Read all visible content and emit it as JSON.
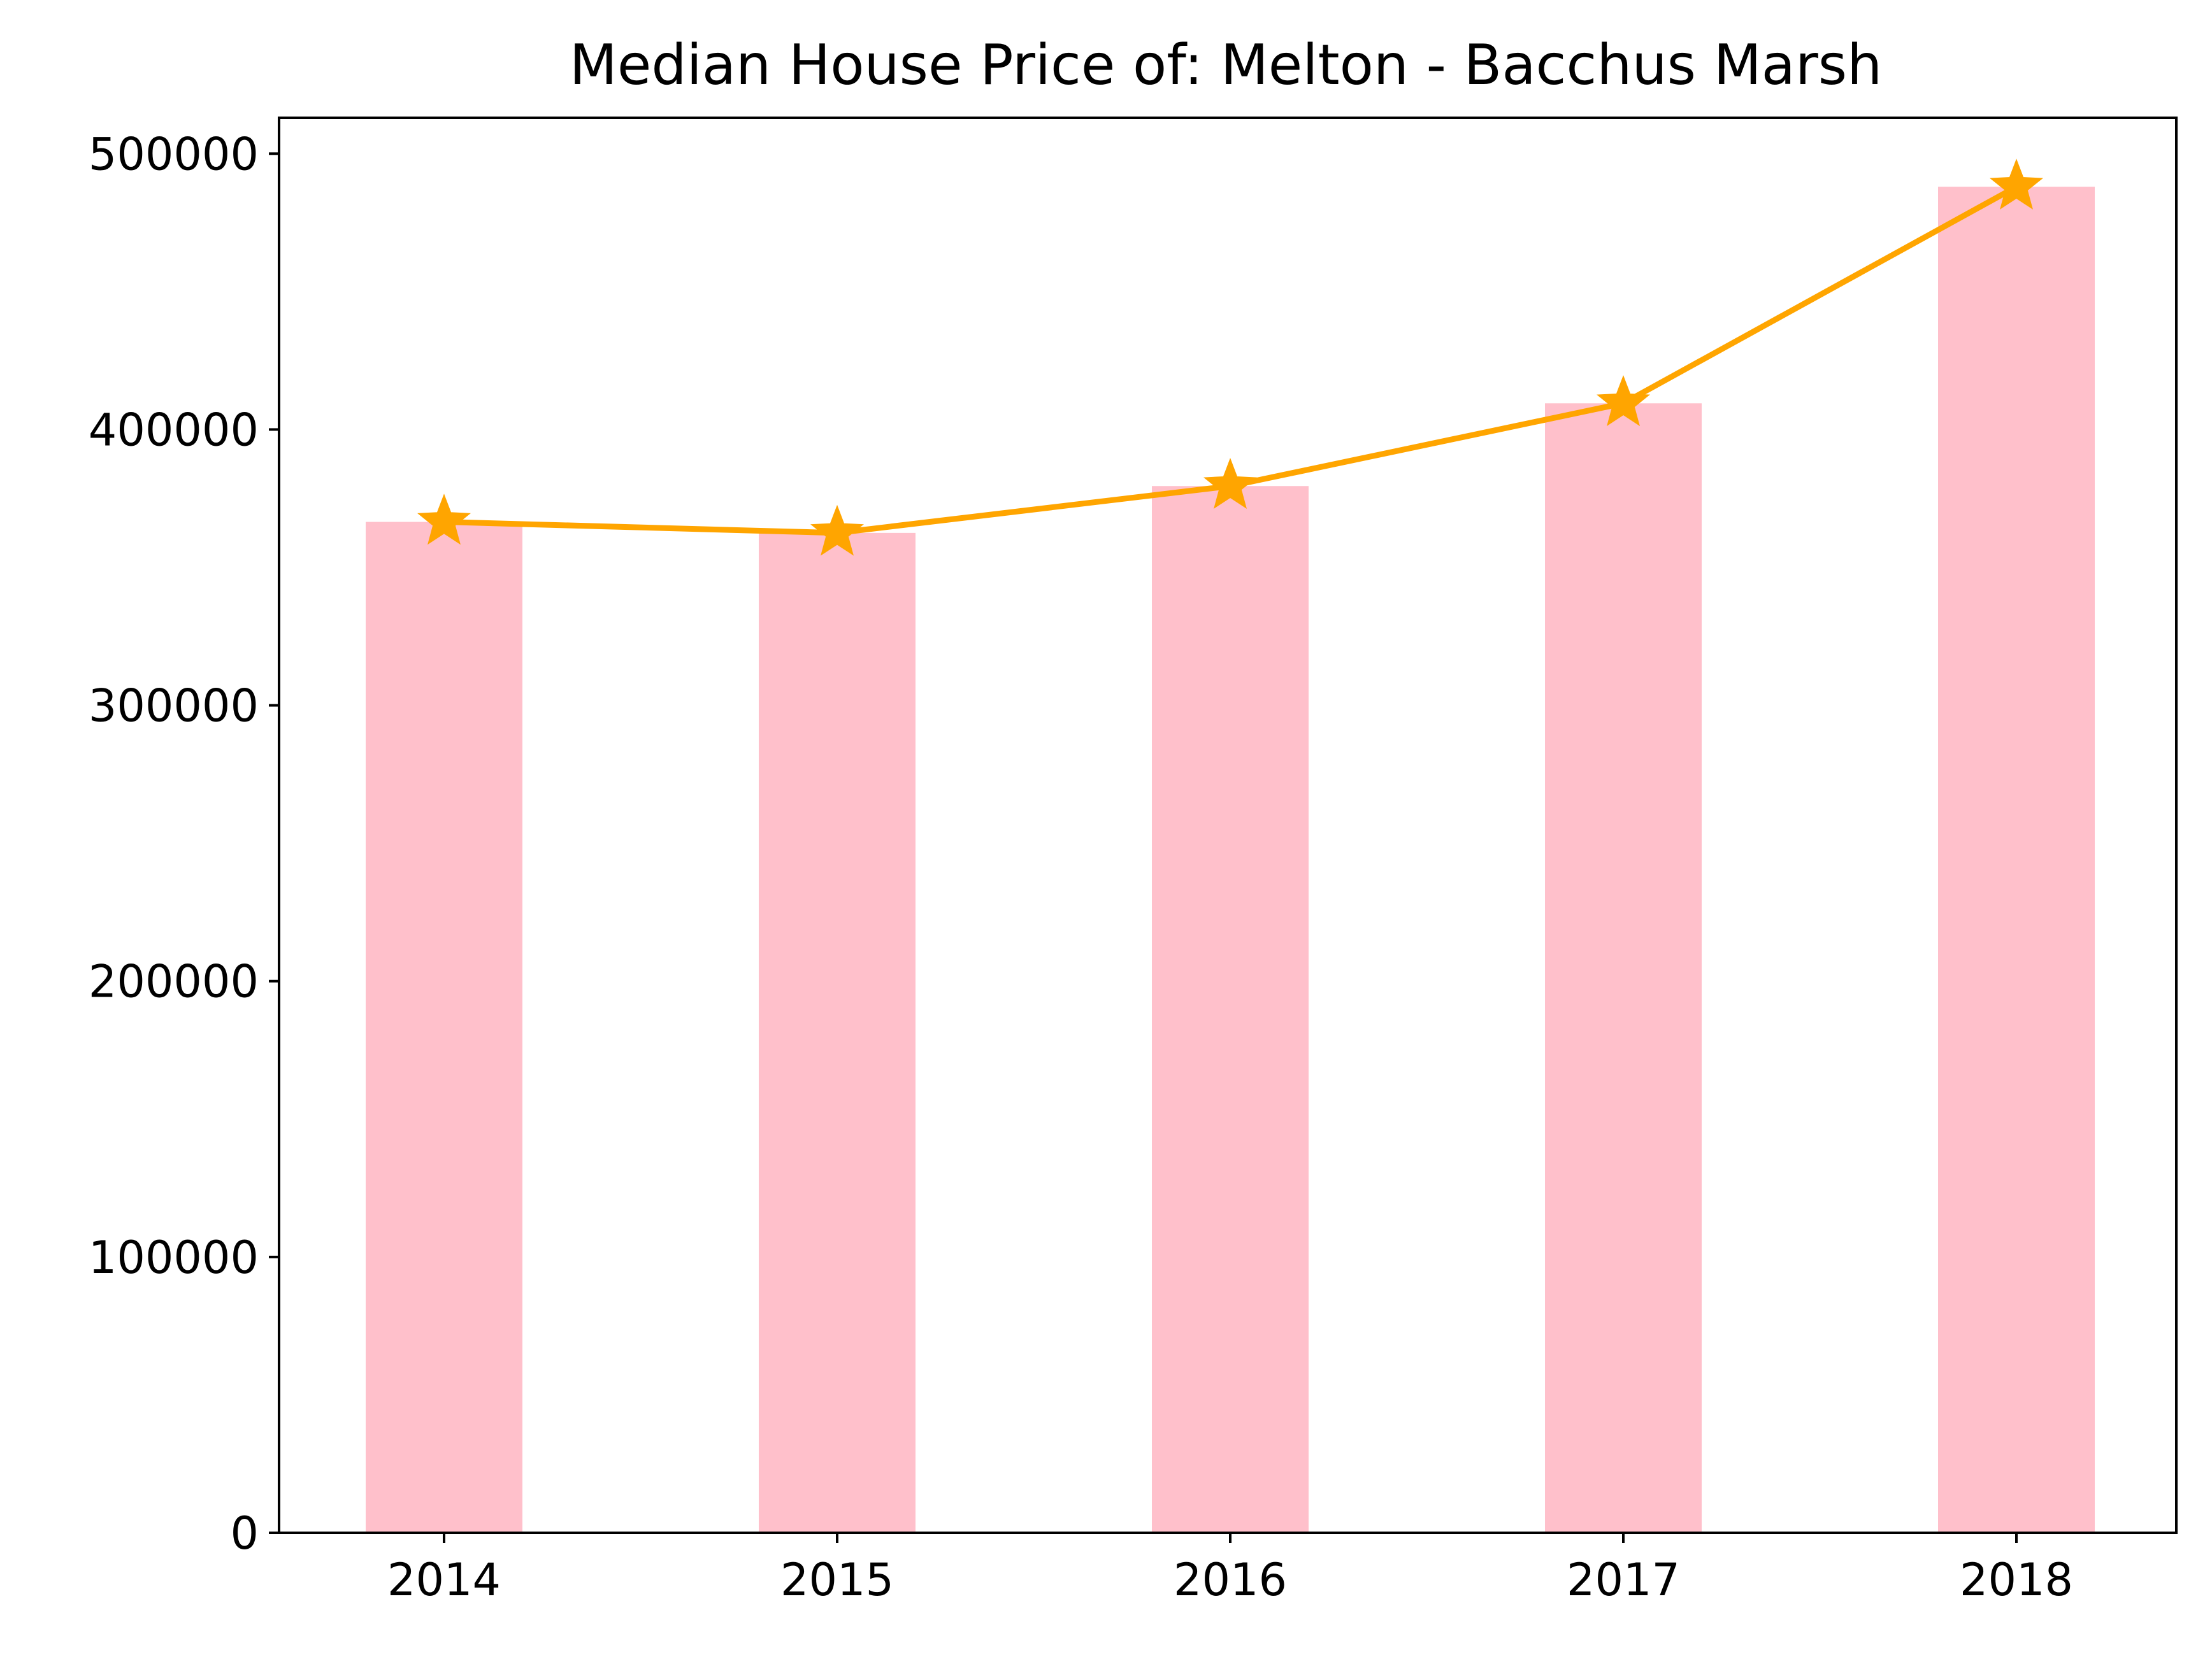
{
  "chart_data": {
    "type": "bar",
    "title": "Median House Price of: Melton - Bacchus Marsh",
    "xlabel": "",
    "ylabel": "",
    "categories": [
      "2014",
      "2015",
      "2016",
      "2017",
      "2018"
    ],
    "values": [
      366500,
      362500,
      379500,
      409500,
      488000
    ],
    "line_overlay": {
      "marker": "star",
      "values": [
        366500,
        362500,
        379500,
        409500,
        488000
      ]
    },
    "ylim": [
      0,
      513000
    ],
    "yticks": [
      0,
      100000,
      200000,
      300000,
      400000,
      500000
    ],
    "ytick_labels": [
      "0",
      "100000",
      "200000",
      "300000",
      "400000",
      "500000"
    ],
    "grid": false,
    "colors": {
      "bar": "#ffc0cb",
      "line": "#ffa500",
      "axes": "#000000"
    }
  }
}
